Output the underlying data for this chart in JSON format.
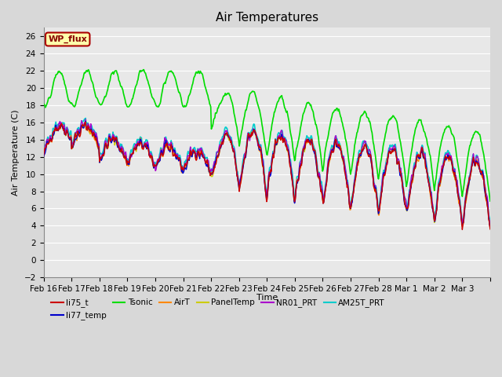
{
  "title": "Air Temperatures",
  "ylabel": "Air Temperature (C)",
  "xlabel": "Time",
  "ylim": [
    -2,
    27
  ],
  "yticks": [
    -2,
    0,
    2,
    4,
    6,
    8,
    10,
    12,
    14,
    16,
    18,
    20,
    22,
    24,
    26
  ],
  "xtick_labels": [
    "Feb 16",
    "Feb 17",
    "Feb 18",
    "Feb 19",
    "Feb 20",
    "Feb 21",
    "Feb 22",
    "Feb 23",
    "Feb 24",
    "Feb 25",
    "Feb 26",
    "Feb 27",
    "Feb 28",
    "Mar 1",
    "Mar 2",
    "Mar 3"
  ],
  "fig_bg_color": "#d8d8d8",
  "plot_bg_color": "#e8e8e8",
  "grid_color": "#ffffff",
  "series": {
    "li75_t": {
      "color": "#cc0000",
      "lw": 1.0,
      "zorder": 4
    },
    "li77_temp": {
      "color": "#0000cc",
      "lw": 1.0,
      "zorder": 4
    },
    "Tsonic": {
      "color": "#00dd00",
      "lw": 1.2,
      "zorder": 5
    },
    "AirT": {
      "color": "#ff8800",
      "lw": 1.0,
      "zorder": 4
    },
    "PanelTemp": {
      "color": "#cccc00",
      "lw": 1.0,
      "zorder": 4
    },
    "NR01_PRT": {
      "color": "#aa00cc",
      "lw": 1.0,
      "zorder": 4
    },
    "AM25T_PRT": {
      "color": "#00cccc",
      "lw": 1.2,
      "zorder": 3
    }
  },
  "wp_flux_box": {
    "text": "WP_flux",
    "facecolor": "#ffffaa",
    "edgecolor": "#aa0000",
    "textcolor": "#880000",
    "fontsize": 8,
    "fontweight": "bold"
  },
  "legend_entries": [
    "li75_t",
    "li77_temp",
    "Tsonic",
    "AirT",
    "PanelTemp",
    "NR01_PRT",
    "AM25T_PRT"
  ],
  "title_fontsize": 11,
  "label_fontsize": 8,
  "tick_fontsize": 7.5
}
